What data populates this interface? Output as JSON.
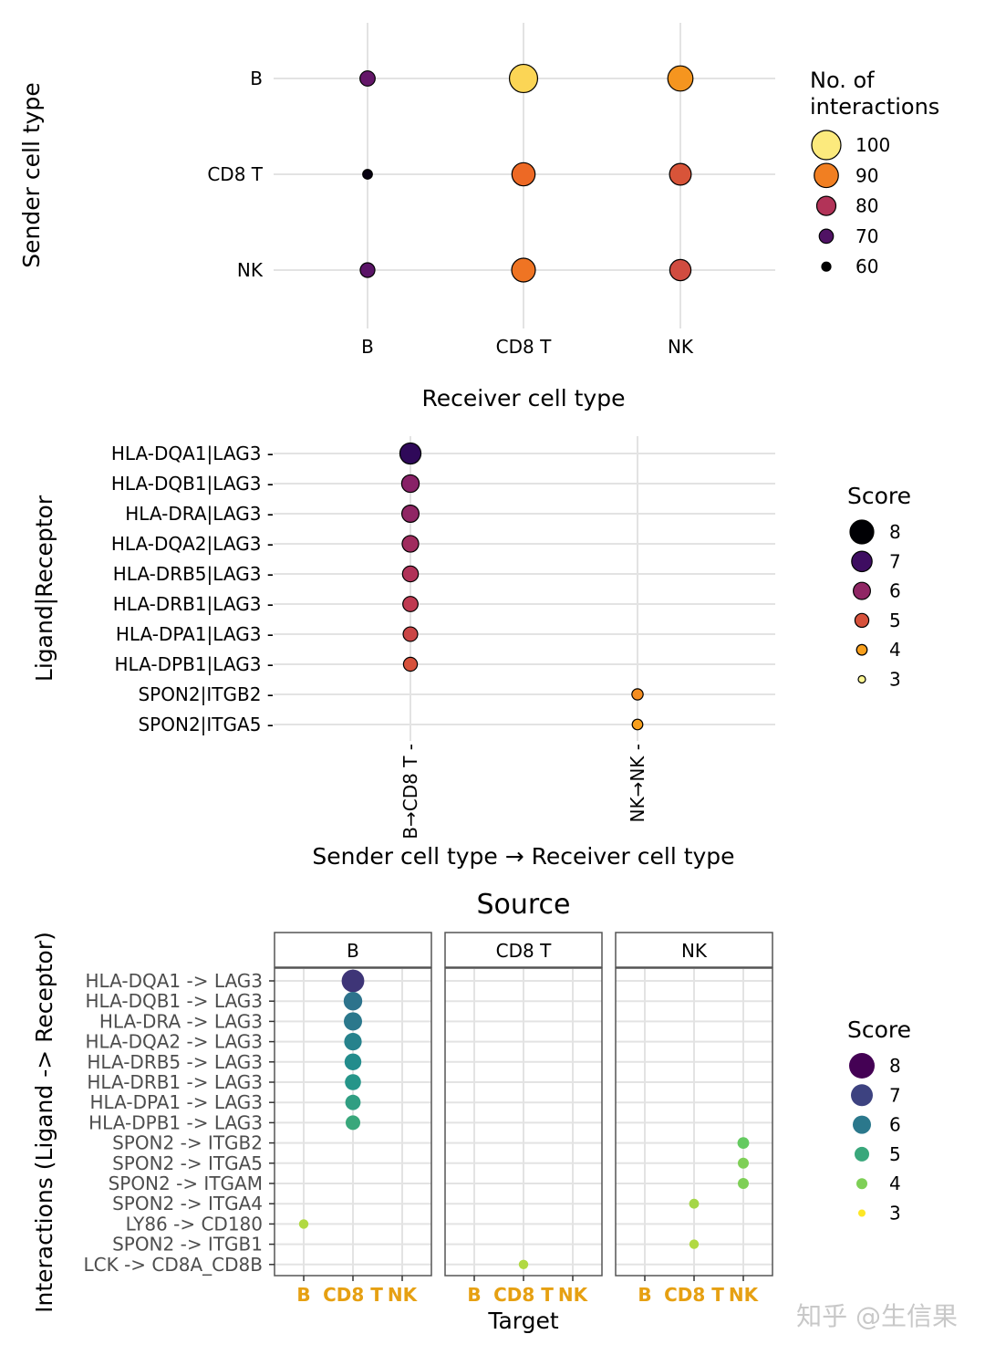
{
  "colors": {
    "grid": "#e3e3e3",
    "facet_border": "#555555",
    "target_tick_label": "#e6a012",
    "watermark": "#c8c8c8"
  },
  "watermark": "知乎 @生信果",
  "chart_data": [
    {
      "type": "scatter",
      "xlabel": "Receiver cell type",
      "ylabel": "Sender cell type",
      "x_categories": [
        "B",
        "CD8 T",
        "NK"
      ],
      "y_categories": [
        "B",
        "CD8 T",
        "NK"
      ],
      "legend": {
        "title_line1": "No. of",
        "title_line2": "interactions",
        "entries": [
          100,
          90,
          80,
          70,
          60
        ],
        "placement": "right",
        "colormap": "inferno",
        "encodes": "size and color"
      },
      "points": [
        {
          "sender": "B",
          "receiver": "B",
          "value": 72
        },
        {
          "sender": "B",
          "receiver": "CD8 T",
          "value": 98
        },
        {
          "sender": "B",
          "receiver": "NK",
          "value": 92
        },
        {
          "sender": "CD8 T",
          "receiver": "B",
          "value": 61
        },
        {
          "sender": "CD8 T",
          "receiver": "CD8 T",
          "value": 88
        },
        {
          "sender": "CD8 T",
          "receiver": "NK",
          "value": 85
        },
        {
          "sender": "NK",
          "receiver": "B",
          "value": 71
        },
        {
          "sender": "NK",
          "receiver": "CD8 T",
          "value": 89
        },
        {
          "sender": "NK",
          "receiver": "NK",
          "value": 84
        }
      ],
      "grid": true
    },
    {
      "type": "scatter",
      "xlabel": "Sender cell type → Receiver cell type",
      "ylabel": "Ligand|Receptor",
      "x_categories": [
        "B→CD8 T",
        "NK→NK"
      ],
      "y_categories": [
        "HLA-DQA1|LAG3",
        "HLA-DQB1|LAG3",
        "HLA-DRA|LAG3",
        "HLA-DQA2|LAG3",
        "HLA-DRB5|LAG3",
        "HLA-DRB1|LAG3",
        "HLA-DPA1|LAG3",
        "HLA-DPB1|LAG3",
        "SPON2|ITGB2",
        "SPON2|ITGA5"
      ],
      "legend": {
        "title": "Score",
        "entries": [
          8,
          7,
          6,
          5,
          4,
          3
        ],
        "placement": "right",
        "colormap": "inferno",
        "encodes": "size and color"
      },
      "points": [
        {
          "x": "B→CD8 T",
          "y": "HLA-DQA1|LAG3",
          "score": 7.2
        },
        {
          "x": "B→CD8 T",
          "y": "HLA-DQB1|LAG3",
          "score": 6.1
        },
        {
          "x": "B→CD8 T",
          "y": "HLA-DRA|LAG3",
          "score": 6.0
        },
        {
          "x": "B→CD8 T",
          "y": "HLA-DQA2|LAG3",
          "score": 5.8
        },
        {
          "x": "B→CD8 T",
          "y": "HLA-DRB5|LAG3",
          "score": 5.6
        },
        {
          "x": "B→CD8 T",
          "y": "HLA-DRB1|LAG3",
          "score": 5.4
        },
        {
          "x": "B→CD8 T",
          "y": "HLA-DPA1|LAG3",
          "score": 5.2
        },
        {
          "x": "B→CD8 T",
          "y": "HLA-DPB1|LAG3",
          "score": 5.0
        },
        {
          "x": "NK→NK",
          "y": "SPON2|ITGB2",
          "score": 4.2
        },
        {
          "x": "NK→NK",
          "y": "SPON2|ITGA5",
          "score": 4.0
        }
      ],
      "grid": true
    },
    {
      "type": "scatter",
      "title": "Source",
      "xlabel": "Target",
      "ylabel": "Interactions (Ligand -> Receptor)",
      "facets": [
        "B",
        "CD8 T",
        "NK"
      ],
      "x_categories": [
        "B",
        "CD8 T",
        "NK"
      ],
      "y_categories": [
        "HLA-DQA1 -> LAG3",
        "HLA-DQB1 -> LAG3",
        "HLA-DRA -> LAG3",
        "HLA-DQA2 -> LAG3",
        "HLA-DRB5 -> LAG3",
        "HLA-DRB1 -> LAG3",
        "HLA-DPA1 -> LAG3",
        "HLA-DPB1 -> LAG3",
        "SPON2 -> ITGB2",
        "SPON2 -> ITGA5",
        "SPON2 -> ITGAM",
        "SPON2 -> ITGA4",
        "LY86 -> CD180",
        "SPON2 -> ITGB1",
        "LCK -> CD8A_CD8B"
      ],
      "legend": {
        "title": "Score",
        "entries": [
          8,
          7,
          6,
          5,
          4,
          3
        ],
        "placement": "right",
        "colormap": "viridis",
        "encodes": "size and color"
      },
      "points": [
        {
          "source": "B",
          "target": "CD8 T",
          "y": "HLA-DQA1 -> LAG3",
          "score": 7.2
        },
        {
          "source": "B",
          "target": "CD8 T",
          "y": "HLA-DQB1 -> LAG3",
          "score": 6.1
        },
        {
          "source": "B",
          "target": "CD8 T",
          "y": "HLA-DRA -> LAG3",
          "score": 6.0
        },
        {
          "source": "B",
          "target": "CD8 T",
          "y": "HLA-DQA2 -> LAG3",
          "score": 5.8
        },
        {
          "source": "B",
          "target": "CD8 T",
          "y": "HLA-DRB5 -> LAG3",
          "score": 5.6
        },
        {
          "source": "B",
          "target": "CD8 T",
          "y": "HLA-DRB1 -> LAG3",
          "score": 5.4
        },
        {
          "source": "B",
          "target": "CD8 T",
          "y": "HLA-DPA1 -> LAG3",
          "score": 5.2
        },
        {
          "source": "B",
          "target": "CD8 T",
          "y": "HLA-DPB1 -> LAG3",
          "score": 5.0
        },
        {
          "source": "NK",
          "target": "NK",
          "y": "SPON2 -> ITGB2",
          "score": 4.2
        },
        {
          "source": "NK",
          "target": "NK",
          "y": "SPON2 -> ITGA5",
          "score": 4.0
        },
        {
          "source": "NK",
          "target": "NK",
          "y": "SPON2 -> ITGAM",
          "score": 4.0
        },
        {
          "source": "NK",
          "target": "CD8 T",
          "y": "SPON2 -> ITGA4",
          "score": 3.7
        },
        {
          "source": "B",
          "target": "B",
          "y": "LY86 -> CD180",
          "score": 3.6
        },
        {
          "source": "NK",
          "target": "CD8 T",
          "y": "SPON2 -> ITGB1",
          "score": 3.6
        },
        {
          "source": "CD8 T",
          "target": "CD8 T",
          "y": "LCK -> CD8A_CD8B",
          "score": 3.6
        }
      ],
      "grid": true
    }
  ]
}
